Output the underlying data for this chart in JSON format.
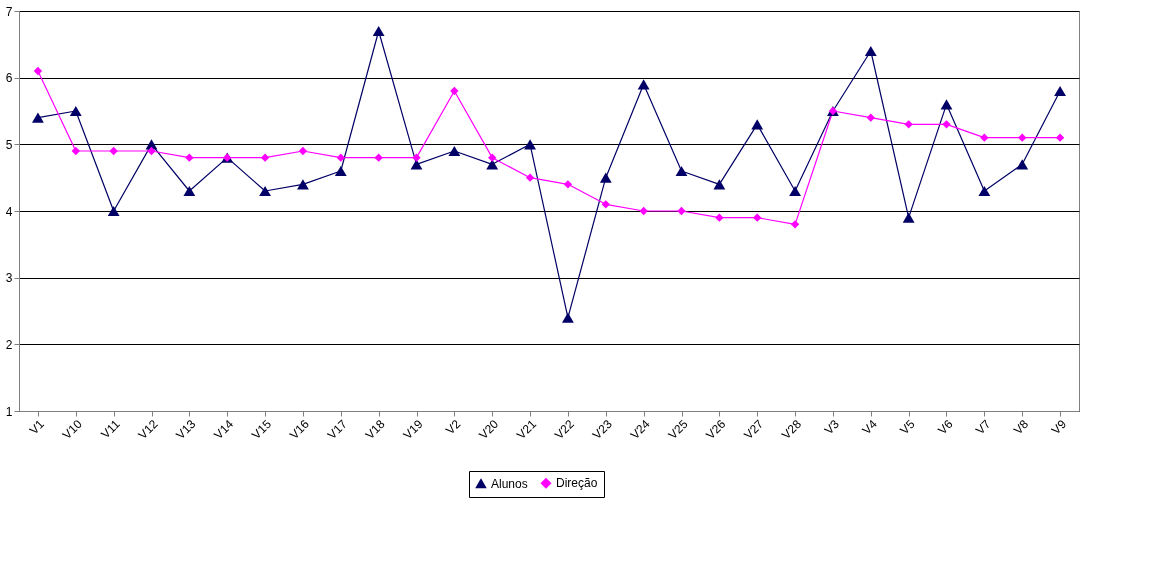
{
  "chart_data": {
    "type": "line",
    "categories": [
      "V1",
      "V10",
      "V11",
      "V12",
      "V13",
      "V14",
      "V15",
      "V16",
      "V17",
      "V18",
      "V19",
      "V2",
      "V20",
      "V21",
      "V22",
      "V23",
      "V24",
      "V25",
      "V26",
      "V27",
      "V28",
      "V3",
      "V4",
      "V5",
      "V6",
      "V7",
      "V8",
      "V9"
    ],
    "series": [
      {
        "name": "Alunos",
        "color": "#000066",
        "marker": "triangle",
        "values": [
          5.4,
          5.5,
          4.0,
          5.0,
          4.3,
          4.8,
          4.3,
          4.4,
          4.6,
          6.7,
          4.7,
          4.9,
          4.7,
          5.0,
          2.4,
          4.5,
          5.9,
          4.6,
          4.4,
          5.3,
          4.3,
          5.5,
          6.4,
          3.9,
          5.6,
          4.3,
          4.7,
          5.8
        ]
      },
      {
        "name": "Direção",
        "color": "#ff00ff",
        "marker": "diamond",
        "values": [
          6.1,
          4.9,
          4.9,
          4.9,
          4.8,
          4.8,
          4.8,
          4.9,
          4.8,
          4.8,
          4.8,
          5.8,
          4.8,
          4.5,
          4.4,
          4.1,
          4.0,
          4.0,
          3.9,
          3.9,
          3.8,
          5.5,
          5.4,
          5.3,
          5.3,
          5.1,
          5.1,
          5.1
        ]
      }
    ],
    "ylim": [
      1,
      7
    ],
    "yticks": [
      1,
      2,
      3,
      4,
      5,
      6,
      7
    ],
    "grid": "y",
    "legend": "bottom",
    "line_style": "solid"
  }
}
